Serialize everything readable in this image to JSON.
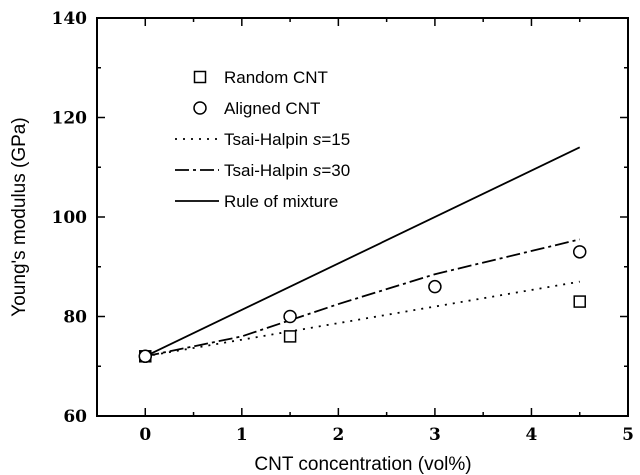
{
  "chart_data": {
    "type": "scatter",
    "xlabel": "CNT concentration (vol%)",
    "ylabel": "Young's modulus (GPa)",
    "xlim": [
      -0.5,
      5
    ],
    "ylim": [
      60,
      140
    ],
    "x_ticks": [
      0,
      1,
      2,
      3,
      4,
      5
    ],
    "y_ticks": [
      60,
      80,
      100,
      120,
      140
    ],
    "legend_position": "top-left",
    "series": [
      {
        "name": "Random CNT",
        "kind": "points",
        "marker": "square",
        "points": [
          [
            0,
            72
          ],
          [
            1.5,
            76
          ],
          [
            4.5,
            83
          ]
        ]
      },
      {
        "name": "Aligned CNT",
        "kind": "points",
        "marker": "circle",
        "points": [
          [
            0,
            72
          ],
          [
            1.5,
            80
          ],
          [
            3,
            86
          ],
          [
            4.5,
            93
          ]
        ]
      },
      {
        "name_prefix": "Tsai-Halpin ",
        "name_italic": "s",
        "name_suffix": "=15",
        "kind": "line",
        "dash": "dotted",
        "points": [
          [
            0,
            72
          ],
          [
            1.5,
            77
          ],
          [
            3,
            82
          ],
          [
            4.5,
            87
          ]
        ]
      },
      {
        "name_prefix": "Tsai-Halpin ",
        "name_italic": "s",
        "name_suffix": "=30",
        "kind": "line",
        "dash": "dashdot",
        "points": [
          [
            0,
            72
          ],
          [
            1,
            76
          ],
          [
            2,
            82.5
          ],
          [
            3,
            88.5
          ],
          [
            4.5,
            95.5
          ]
        ]
      },
      {
        "name": "Rule of mixture",
        "kind": "line",
        "dash": "solid",
        "points": [
          [
            0,
            72
          ],
          [
            4.5,
            114
          ]
        ]
      }
    ]
  }
}
